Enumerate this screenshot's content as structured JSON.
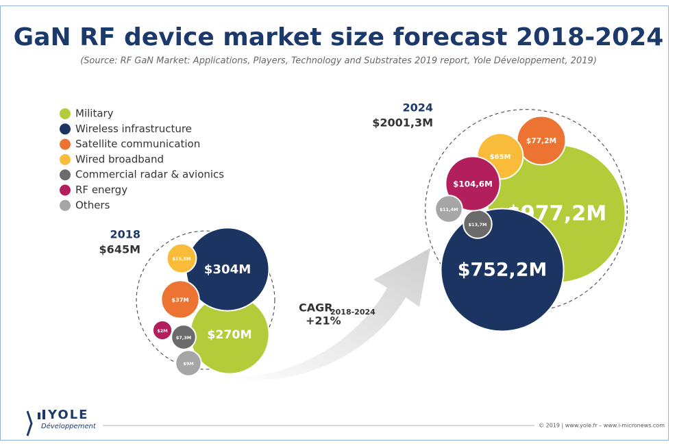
{
  "chart_data": {
    "type": "bubble",
    "title": "GaN RF device market size forecast 2018-2024",
    "subtitle": "(Source: RF GaN Market: Applications, Players, Technology and Substrates 2019 report, Yole Développement, 2019)",
    "categories": [
      "2018",
      "2024"
    ],
    "totals": [
      645,
      2001.3
    ],
    "total_labels": [
      "$645M",
      "$2001,3M"
    ],
    "series": [
      {
        "name": "Military",
        "color": "#b5cc3a",
        "values": [
          270,
          977.2
        ],
        "value_labels": [
          "$270M",
          "$977,2M"
        ]
      },
      {
        "name": "Wireless infrastructure",
        "color": "#1b3462",
        "values": [
          304,
          752.2
        ],
        "value_labels": [
          "$304M",
          "$752,2M"
        ]
      },
      {
        "name": "Satellite communication",
        "color": "#ec7331",
        "values": [
          37,
          77.2
        ],
        "value_labels": [
          "$37M",
          "$77,2M"
        ]
      },
      {
        "name": "Wired broadband",
        "color": "#f8bc3a",
        "values": [
          15.5,
          65
        ],
        "value_labels": [
          "$15,5M",
          "$65M"
        ]
      },
      {
        "name": "Commercial radar & avionics",
        "color": "#6b6b6b",
        "values": [
          7.3,
          13.7
        ],
        "value_labels": [
          "$7,3M",
          "$13,7M"
        ]
      },
      {
        "name": "RF energy",
        "color": "#b21f5c",
        "values": [
          2,
          104.6
        ],
        "value_labels": [
          "$2M",
          "$104,6M"
        ]
      },
      {
        "name": "Others",
        "color": "#a6a6a6",
        "values": [
          9,
          11.4
        ],
        "value_labels": [
          "$9M",
          "$11,4M"
        ]
      }
    ],
    "annotation": {
      "label": "CAGR",
      "period": "2018-2024",
      "value": "+21%"
    },
    "logo": {
      "name": "YOLE",
      "tagline": "Développement"
    },
    "footer": "© 2019 | www.yole.fr – www.i-micronews.com"
  }
}
